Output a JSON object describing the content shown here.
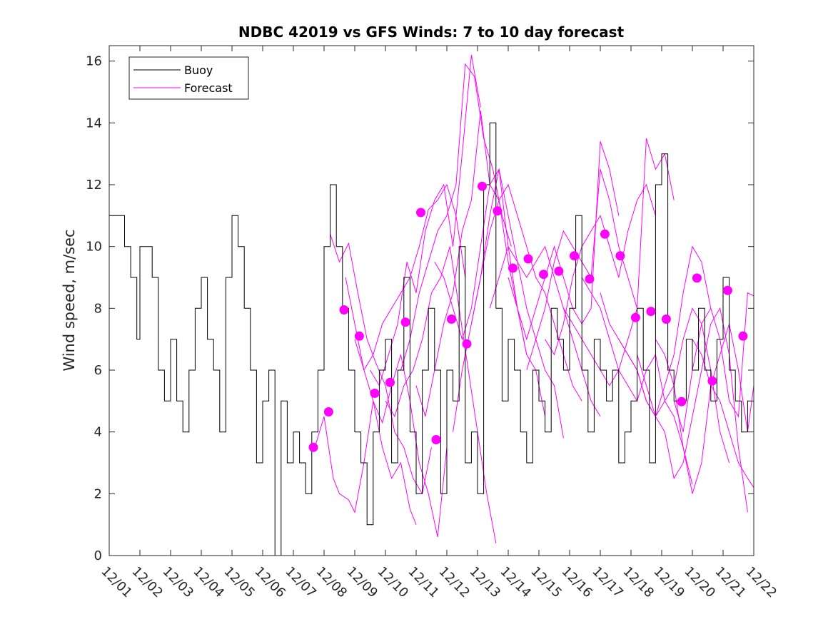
{
  "chart_data": {
    "type": "line",
    "title": "NDBC 42019 vs GFS Winds: 7 to 10 day forecast",
    "xlabel": "",
    "ylabel": "Wind speed, m/sec",
    "x_unit": "days since 12/01",
    "xlim": [
      0,
      21
    ],
    "ylim": [
      0,
      16.5
    ],
    "yticks": [
      0,
      2,
      4,
      6,
      8,
      10,
      12,
      14,
      16
    ],
    "xtick_labels": [
      "12/01",
      "12/02",
      "12/03",
      "12/04",
      "12/05",
      "12/06",
      "12/07",
      "12/08",
      "12/09",
      "12/10",
      "12/11",
      "12/12",
      "12/13",
      "12/14",
      "12/15",
      "12/16",
      "12/17",
      "12/18",
      "12/19",
      "12/20",
      "12/21",
      "12/22"
    ],
    "legend": {
      "placement": "top-left",
      "entries": [
        {
          "label": "Buoy",
          "color": "#000000"
        },
        {
          "label": "Forecast",
          "color": "#ff00ff"
        }
      ]
    },
    "colors": {
      "buoy": "#000000",
      "forecast": "#ff00ff",
      "axes": "#262626"
    },
    "series": [
      {
        "name": "Buoy",
        "color": "#000000",
        "step": true,
        "x": [
          0,
          0.3,
          0.5,
          0.7,
          0.9,
          1.0,
          1.2,
          1.4,
          1.6,
          1.8,
          2.0,
          2.2,
          2.4,
          2.6,
          2.8,
          3.0,
          3.2,
          3.4,
          3.6,
          3.8,
          4.0,
          4.2,
          4.4,
          4.6,
          4.8,
          5.0,
          5.2,
          5.4,
          5.6,
          5.8,
          6.0,
          6.2,
          6.4,
          6.6,
          6.8,
          7.0,
          7.2,
          7.4,
          7.6,
          7.8,
          8.0,
          8.2,
          8.4,
          8.6,
          8.8,
          9.0,
          9.2,
          9.4,
          9.6,
          9.8,
          10.0,
          10.2,
          10.4,
          10.6,
          10.8,
          11.0,
          11.2,
          11.4,
          11.6,
          11.8,
          12.0,
          12.2,
          12.4,
          12.6,
          12.8,
          13.0,
          13.2,
          13.4,
          13.6,
          13.8,
          14.0,
          14.2,
          14.4,
          14.6,
          14.8,
          15.0,
          15.2,
          15.4,
          15.6,
          15.8,
          16.0,
          16.2,
          16.4,
          16.6,
          16.8,
          17.0,
          17.2,
          17.4,
          17.6,
          17.8,
          18.0,
          18.2,
          18.4,
          18.6,
          18.8,
          19.0,
          19.2,
          19.4,
          19.6,
          19.8,
          20.0,
          20.2,
          20.4,
          20.6,
          20.8,
          21.0
        ],
        "values": [
          11,
          11,
          10,
          9,
          7,
          10,
          10,
          9,
          6,
          5,
          7,
          5,
          4,
          6,
          8,
          9,
          7,
          6,
          4,
          9,
          11,
          10,
          8,
          6,
          3,
          5,
          6,
          0,
          5,
          3,
          4,
          3,
          2,
          4,
          6,
          10,
          12,
          10,
          8,
          6,
          4,
          3,
          1,
          4,
          6,
          7,
          3,
          6,
          9,
          4,
          2,
          6,
          8,
          6,
          2,
          6,
          5,
          10,
          3,
          4,
          2,
          12,
          14,
          8,
          5,
          7,
          6,
          4,
          3,
          6,
          5,
          4,
          8,
          7,
          6,
          8,
          11,
          6,
          4,
          7,
          6,
          5,
          6,
          3,
          4,
          5,
          8,
          6,
          3,
          12,
          13,
          6,
          5,
          5,
          7,
          6,
          8,
          6,
          5,
          7,
          9,
          6,
          5,
          4,
          5,
          5
        ]
      },
      {
        "name": "Forecast",
        "color": "#ff00ff",
        "x": [
          6.7,
          7.0,
          7.3,
          7.5,
          7.8,
          8.0,
          8.3,
          8.6,
          8.9,
          9.2,
          9.5,
          9.8,
          10.0
        ],
        "values": [
          3.5,
          4.5,
          2.5,
          2.0,
          1.8,
          1.4,
          3.0,
          5.0,
          3.5,
          2.5,
          3.0,
          1.5,
          1.0
        ]
      },
      {
        "name": "Forecast",
        "color": "#ff00ff",
        "x": [
          7.2,
          7.5,
          7.8,
          8.1,
          8.4,
          8.7,
          9.0,
          9.3,
          9.6,
          9.9,
          10.2,
          10.5
        ],
        "values": [
          10.4,
          9.5,
          10.1,
          8.5,
          7.0,
          6.2,
          5.5,
          4.0,
          3.5,
          2.5,
          2.0,
          3.5
        ]
      },
      {
        "name": "Forecast",
        "color": "#ff00ff",
        "x": [
          7.7,
          8.0,
          8.3,
          8.6,
          8.9,
          9.2,
          9.5,
          9.8,
          10.1,
          10.4,
          10.7,
          11.0
        ],
        "values": [
          9.0,
          7.5,
          6.0,
          5.0,
          4.3,
          5.5,
          6.5,
          5.0,
          3.0,
          2.0,
          0.6,
          3.5
        ]
      },
      {
        "name": "Forecast",
        "color": "#ff00ff",
        "x": [
          8.0,
          8.3,
          8.6,
          8.9,
          9.2,
          9.5,
          9.8,
          10.1,
          10.4,
          10.7,
          11.0,
          11.3,
          11.6
        ],
        "values": [
          7.0,
          6.0,
          6.5,
          7.5,
          8.0,
          8.5,
          9.0,
          10.0,
          11.2,
          11.5,
          12.0,
          11.0,
          9.0
        ]
      },
      {
        "name": "Forecast",
        "color": "#ff00ff",
        "x": [
          8.5,
          8.8,
          9.1,
          9.4,
          9.7,
          10.0,
          10.3,
          10.6,
          10.9,
          11.2,
          11.5,
          11.8,
          12.1
        ],
        "values": [
          6.0,
          5.5,
          6.5,
          7.5,
          9.5,
          8.5,
          10.5,
          11.5,
          12.0,
          10.0,
          13.0,
          16.2,
          14.5
        ]
      },
      {
        "name": "Forecast",
        "color": "#ff00ff",
        "x": [
          9.0,
          9.3,
          9.6,
          9.9,
          10.2,
          10.5,
          10.8,
          11.1,
          11.4,
          11.7,
          12.0,
          12.3,
          12.6
        ],
        "values": [
          5.0,
          4.5,
          5.5,
          6.0,
          7.0,
          8.5,
          9.0,
          10.0,
          8.0,
          6.0,
          4.0,
          2.0,
          0.4
        ]
      },
      {
        "name": "Forecast",
        "color": "#ff00ff",
        "x": [
          9.5,
          9.8,
          10.1,
          10.4,
          10.7,
          11.0,
          11.3,
          11.6,
          11.9,
          12.2,
          12.5,
          12.8,
          13.1
        ],
        "values": [
          6.0,
          7.0,
          8.5,
          9.5,
          10.5,
          11.0,
          12.0,
          15.9,
          15.5,
          13.5,
          12.5,
          11.0,
          10.0
        ]
      },
      {
        "name": "Forecast",
        "color": "#ff00ff",
        "x": [
          10.0,
          10.3,
          10.6,
          10.9,
          11.2,
          11.5,
          11.8,
          12.1,
          12.4,
          12.7,
          13.0,
          13.3,
          13.6
        ],
        "values": [
          5.5,
          4.5,
          6.0,
          7.5,
          8.5,
          10.5,
          11.5,
          14.4,
          12.0,
          12.5,
          10.0,
          8.0,
          6.5
        ]
      },
      {
        "name": "Forecast",
        "color": "#ff00ff",
        "x": [
          10.6,
          10.9,
          11.2,
          11.5,
          11.8,
          12.1,
          12.4,
          12.7,
          13.0,
          13.3,
          13.6,
          13.9,
          14.2
        ],
        "values": [
          9.5,
          9.0,
          8.0,
          7.0,
          8.0,
          10.0,
          12.0,
          11.5,
          9.5,
          8.0,
          6.5,
          6.0,
          4.5
        ]
      },
      {
        "name": "Forecast",
        "color": "#ff00ff",
        "x": [
          11.2,
          11.5,
          11.8,
          12.1,
          12.4,
          12.7,
          13.0,
          13.3,
          13.6,
          13.9,
          14.2,
          14.5,
          14.8
        ],
        "values": [
          4.0,
          6.0,
          7.5,
          9.0,
          11.0,
          12.5,
          11.0,
          9.5,
          8.0,
          7.0,
          6.0,
          5.5,
          3.8
        ]
      },
      {
        "name": "Forecast",
        "color": "#ff00ff",
        "x": [
          11.8,
          12.1,
          12.4,
          12.7,
          13.0,
          13.3,
          13.6,
          13.9,
          14.2,
          14.5,
          14.8,
          15.1,
          15.4
        ],
        "values": [
          7.5,
          9.0,
          10.5,
          11.5,
          12.0,
          11.0,
          10.0,
          9.0,
          8.5,
          7.5,
          6.5,
          5.5,
          5.0
        ]
      },
      {
        "name": "Forecast",
        "color": "#ff00ff",
        "x": [
          12.4,
          12.7,
          13.0,
          13.3,
          13.6,
          13.9,
          14.2,
          14.5,
          14.8,
          15.1,
          15.4,
          15.7,
          16.0
        ],
        "values": [
          8.0,
          9.0,
          10.0,
          9.5,
          9.0,
          9.5,
          10.0,
          9.0,
          8.0,
          7.0,
          6.0,
          5.0,
          4.5
        ]
      },
      {
        "name": "Forecast",
        "color": "#ff00ff",
        "x": [
          13.0,
          13.3,
          13.6,
          13.9,
          14.2,
          14.5,
          14.8,
          15.1,
          15.4,
          15.7,
          16.0,
          16.3,
          16.6
        ],
        "values": [
          9.0,
          8.0,
          7.0,
          8.0,
          9.0,
          10.0,
          9.0,
          8.0,
          7.5,
          8.0,
          13.4,
          12.5,
          11.0
        ]
      },
      {
        "name": "Forecast",
        "color": "#ff00ff",
        "x": [
          13.6,
          13.9,
          14.2,
          14.5,
          14.8,
          15.1,
          15.4,
          15.7,
          16.0,
          16.3,
          16.6,
          16.9,
          17.2
        ],
        "values": [
          6.0,
          7.0,
          8.0,
          9.5,
          10.5,
          10.0,
          9.5,
          9.0,
          12.5,
          11.5,
          10.0,
          9.0,
          8.0
        ]
      },
      {
        "name": "Forecast",
        "color": "#ff00ff",
        "x": [
          14.2,
          14.5,
          14.8,
          15.1,
          15.4,
          15.7,
          16.0,
          16.3,
          16.6,
          16.9,
          17.2,
          17.5,
          17.8
        ],
        "values": [
          7.0,
          6.5,
          7.5,
          9.0,
          10.0,
          10.5,
          11.0,
          10.0,
          9.0,
          10.5,
          11.5,
          12.0,
          11.0
        ]
      },
      {
        "name": "Forecast",
        "color": "#ff00ff",
        "x": [
          14.8,
          15.1,
          15.4,
          15.7,
          16.0,
          16.3,
          16.6,
          16.9,
          17.2,
          17.5,
          17.8,
          18.1,
          18.4
        ],
        "values": [
          8.0,
          7.5,
          7.0,
          6.5,
          6.0,
          5.5,
          6.0,
          7.0,
          8.0,
          13.5,
          12.5,
          13.0,
          11.5
        ]
      },
      {
        "name": "Forecast",
        "color": "#ff00ff",
        "x": [
          15.4,
          15.7,
          16.0,
          16.3,
          16.6,
          16.9,
          17.2,
          17.5,
          17.8,
          18.1,
          18.4,
          18.7,
          19.0
        ],
        "values": [
          9.0,
          8.5,
          8.0,
          7.0,
          6.0,
          5.5,
          5.0,
          6.0,
          6.5,
          5.0,
          4.5,
          3.5,
          2.3
        ]
      },
      {
        "name": "Forecast",
        "color": "#ff00ff",
        "x": [
          16.0,
          16.3,
          16.6,
          16.9,
          17.2,
          17.5,
          17.8,
          18.1,
          18.4,
          18.7,
          19.0,
          19.3,
          19.6
        ],
        "values": [
          8.5,
          7.5,
          7.0,
          6.5,
          6.0,
          5.0,
          4.5,
          5.5,
          6.5,
          8.5,
          10.0,
          9.5,
          8.0
        ]
      },
      {
        "name": "Forecast",
        "color": "#ff00ff",
        "x": [
          16.6,
          16.9,
          17.2,
          17.5,
          17.8,
          18.1,
          18.4,
          18.7,
          19.0,
          19.3,
          19.6,
          19.9,
          20.2
        ],
        "values": [
          7.0,
          6.5,
          6.0,
          5.0,
          4.5,
          5.0,
          5.5,
          7.0,
          8.0,
          7.5,
          6.0,
          4.0,
          3.0
        ]
      },
      {
        "name": "Forecast",
        "color": "#ff00ff",
        "x": [
          17.2,
          17.5,
          17.8,
          18.1,
          18.4,
          18.7,
          19.0,
          19.3,
          19.6,
          19.9,
          20.2,
          20.5,
          20.8
        ],
        "values": [
          6.5,
          5.5,
          4.5,
          4.0,
          2.5,
          3.0,
          4.5,
          6.0,
          7.5,
          8.0,
          6.5,
          3.5,
          1.4
        ]
      },
      {
        "name": "Forecast",
        "color": "#ff00ff",
        "x": [
          17.8,
          18.1,
          18.4,
          18.7,
          19.0,
          19.3,
          19.6,
          19.9,
          20.2,
          20.5,
          20.8,
          21.0
        ],
        "values": [
          7.0,
          6.5,
          5.5,
          3.5,
          2.0,
          3.0,
          5.5,
          6.5,
          7.5,
          6.0,
          4.0,
          5.5
        ]
      },
      {
        "name": "Forecast",
        "color": "#ff00ff",
        "x": [
          18.4,
          18.7,
          19.0,
          19.3,
          19.6,
          19.9,
          20.2,
          20.5,
          20.8,
          21.0
        ],
        "values": [
          5.0,
          4.0,
          6.0,
          7.5,
          8.0,
          7.0,
          5.0,
          4.5,
          8.5,
          8.4
        ]
      },
      {
        "name": "Forecast",
        "color": "#ff00ff",
        "x": [
          19.0,
          19.3,
          19.6,
          19.9,
          20.2,
          20.5,
          20.8,
          21.0
        ],
        "values": [
          7.0,
          6.5,
          5.5,
          5.0,
          4.0,
          3.0,
          2.5,
          2.2
        ]
      }
    ],
    "markers": {
      "name": "Forecast points",
      "color": "#ff00ff",
      "x": [
        6.65,
        7.15,
        7.65,
        8.15,
        8.65,
        9.15,
        9.65,
        10.15,
        10.65,
        11.15,
        11.65,
        12.15,
        12.65,
        13.15,
        13.65,
        14.15,
        14.65,
        15.15,
        15.65,
        16.15,
        16.65,
        17.15,
        17.65,
        18.15,
        18.65,
        19.15,
        19.65,
        20.15,
        20.65
      ],
      "values": [
        3.5,
        4.65,
        7.95,
        7.1,
        5.25,
        5.6,
        7.55,
        11.1,
        3.75,
        7.65,
        6.85,
        11.95,
        11.15,
        9.3,
        9.6,
        9.1,
        9.2,
        9.7,
        8.95,
        10.4,
        9.7,
        7.7,
        7.9,
        7.65,
        4.98,
        8.98,
        5.65,
        8.58,
        7.1
      ]
    }
  }
}
